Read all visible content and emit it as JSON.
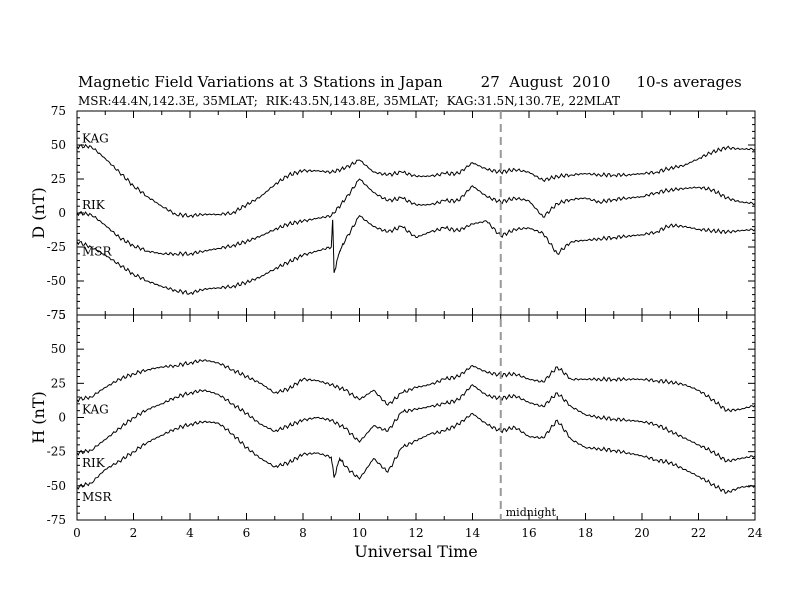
{
  "title": {
    "main": "Magnetic Field Variations at 3 Stations in Japan",
    "date": "27  August  2010",
    "averaging": "10-s averages"
  },
  "subtitle": {
    "msr": "MSR:44.4N,142.3E, 35MLAT;",
    "rik": "RIK:43.5N,143.8E, 35MLAT;",
    "kag": "KAG:31.5N,130.7E, 22MLAT"
  },
  "colors": {
    "trace": "#000000",
    "midnight_marker": "#999999"
  },
  "chart_data": [
    {
      "type": "line",
      "panel": "top",
      "ylabel": "D (nT)",
      "ylim": [
        -75,
        75
      ],
      "yticks": [
        75,
        50,
        25,
        0,
        -25,
        -50,
        -75
      ],
      "xlim": [
        0,
        24
      ],
      "series": [
        {
          "name": "KAG",
          "x": [
            0,
            0.5,
            1,
            1.5,
            2,
            2.5,
            3,
            3.5,
            4,
            4.5,
            5,
            5.5,
            6,
            6.5,
            7,
            7.5,
            8,
            8.5,
            9,
            9.5,
            10,
            10.5,
            11,
            11.5,
            12,
            12.5,
            13,
            13.5,
            14,
            14.5,
            15,
            15.5,
            16,
            16.5,
            17,
            17.5,
            18,
            18.5,
            19,
            19.5,
            20,
            20.5,
            21,
            21.5,
            22,
            22.5,
            23,
            23.5,
            24
          ],
          "values": [
            49,
            49,
            40,
            30,
            20,
            12,
            5,
            -1,
            -2,
            -1,
            -1,
            0,
            6,
            12,
            21,
            28,
            31,
            31,
            30,
            33,
            39,
            30,
            28,
            30,
            27,
            27,
            29,
            29,
            37,
            32,
            30,
            32,
            30,
            24,
            27,
            28,
            29,
            28,
            28,
            28,
            29,
            30,
            33,
            35,
            40,
            45,
            48,
            47,
            47
          ]
        },
        {
          "name": "RIK",
          "x": [
            0,
            0.5,
            1,
            1.5,
            2,
            2.5,
            3,
            3.5,
            4,
            4.5,
            5,
            5.5,
            6,
            6.5,
            7,
            7.5,
            8,
            8.5,
            9,
            9.5,
            10,
            10.5,
            11,
            11.5,
            12,
            12.5,
            13,
            13.5,
            14,
            14.5,
            15,
            15.5,
            16,
            16.5,
            17,
            17.5,
            18,
            18.5,
            19,
            19.5,
            20,
            20.5,
            21,
            21.5,
            22,
            22.5,
            23,
            23.5,
            24
          ],
          "values": [
            0,
            -1,
            -9,
            -18,
            -24,
            -28,
            -30,
            -30,
            -30,
            -28,
            -26,
            -24,
            -21,
            -17,
            -12,
            -8,
            -6,
            -4,
            -2,
            10,
            25,
            15,
            9,
            11,
            6,
            6,
            9,
            9,
            20,
            12,
            8,
            11,
            9,
            -3,
            7,
            10,
            11,
            8,
            10,
            11,
            12,
            15,
            17,
            18,
            19,
            17,
            11,
            8,
            7
          ]
        },
        {
          "name": "MSR",
          "x": [
            0,
            0.5,
            1,
            1.5,
            2,
            2.5,
            3,
            3.5,
            4,
            4.5,
            5,
            5.5,
            6,
            6.5,
            7,
            7.5,
            8,
            8.5,
            9,
            9.05,
            9.1,
            9.3,
            9.5,
            10,
            10.5,
            11,
            11.5,
            12,
            12.5,
            13,
            13.5,
            14,
            14.5,
            15,
            15.5,
            16,
            16.5,
            17,
            17.5,
            18,
            18.5,
            19,
            19.5,
            20,
            20.5,
            21,
            21.5,
            22,
            22.5,
            23,
            23.5,
            24
          ],
          "values": [
            -21,
            -25,
            -31,
            -38,
            -45,
            -50,
            -54,
            -57,
            -59,
            -56,
            -55,
            -54,
            -51,
            -47,
            -41,
            -36,
            -31,
            -28,
            -25,
            -5,
            -44,
            -28,
            -20,
            -2,
            -10,
            -14,
            -10,
            -18,
            -14,
            -11,
            -13,
            -8,
            -6,
            -17,
            -12,
            -11,
            -15,
            -30,
            -21,
            -20,
            -19,
            -18,
            -17,
            -16,
            -14,
            -9,
            -10,
            -12,
            -13,
            -14,
            -13,
            -12
          ]
        }
      ]
    },
    {
      "type": "line",
      "panel": "bottom",
      "ylabel": "H (nT)",
      "ylim": [
        -75,
        75
      ],
      "yticks": [
        75,
        50,
        25,
        0,
        -25,
        -50,
        -75
      ],
      "xlim": [
        0,
        24
      ],
      "xticks": [
        0,
        2,
        4,
        6,
        8,
        10,
        12,
        14,
        16,
        18,
        20,
        22,
        24
      ],
      "xlabel": "Universal Time",
      "annotation": {
        "text": "midnight",
        "x": 15
      },
      "series": [
        {
          "name": "KAG",
          "x": [
            0,
            0.5,
            1,
            1.5,
            2,
            2.5,
            3,
            3.5,
            4,
            4.5,
            5,
            5.5,
            6,
            6.5,
            7,
            7.5,
            8,
            8.5,
            9,
            9.5,
            10,
            10.5,
            11,
            11.5,
            12,
            12.5,
            13,
            13.5,
            14,
            14.5,
            15,
            15.5,
            16,
            16.5,
            17,
            17.5,
            18,
            18.5,
            19,
            19.5,
            20,
            20.5,
            21,
            21.5,
            22,
            22.5,
            23,
            23.5,
            24
          ],
          "values": [
            13,
            15,
            22,
            28,
            32,
            35,
            37,
            38,
            40,
            42,
            40,
            35,
            30,
            25,
            18,
            21,
            28,
            27,
            24,
            20,
            13,
            20,
            9,
            18,
            22,
            24,
            28,
            30,
            38,
            33,
            31,
            32,
            28,
            26,
            37,
            28,
            28,
            28,
            28,
            28,
            28,
            27,
            26,
            24,
            20,
            13,
            5,
            6,
            9
          ]
        },
        {
          "name": "RIK",
          "x": [
            0,
            0.5,
            1,
            1.5,
            2,
            2.5,
            3,
            3.5,
            4,
            4.5,
            5,
            5.5,
            6,
            6.5,
            7,
            7.5,
            8,
            8.5,
            9,
            9.5,
            10,
            10.5,
            11,
            11.5,
            12,
            12.5,
            13,
            13.5,
            14,
            14.5,
            15,
            15.5,
            16,
            16.5,
            17,
            17.5,
            18,
            18.5,
            19,
            19.5,
            20,
            20.5,
            21,
            21.5,
            22,
            22.5,
            23,
            23.5,
            24
          ],
          "values": [
            -26,
            -24,
            -16,
            -8,
            0,
            6,
            10,
            15,
            18,
            20,
            17,
            10,
            3,
            -5,
            -10,
            -6,
            -2,
            0,
            -2,
            -8,
            -18,
            -6,
            -10,
            4,
            6,
            8,
            10,
            13,
            24,
            16,
            14,
            16,
            11,
            8,
            18,
            8,
            2,
            0,
            -1,
            -2,
            -3,
            -5,
            -10,
            -15,
            -20,
            -25,
            -32,
            -30,
            -28
          ]
        },
        {
          "name": "MSR",
          "x": [
            0,
            0.5,
            1,
            1.5,
            2,
            2.5,
            3,
            3.5,
            4,
            4.5,
            5,
            5.5,
            6,
            6.5,
            7,
            7.5,
            8,
            8.5,
            9,
            9.1,
            9.3,
            9.5,
            10,
            10.5,
            11,
            11.5,
            12,
            12.5,
            13,
            13.5,
            14,
            14.5,
            15,
            15.5,
            16,
            16.5,
            17,
            17.5,
            18,
            18.5,
            19,
            19.5,
            20,
            20.5,
            21,
            21.5,
            22,
            22.5,
            23,
            23.5,
            24
          ],
          "values": [
            -51,
            -48,
            -38,
            -32,
            -25,
            -18,
            -13,
            -8,
            -5,
            -3,
            -4,
            -12,
            -22,
            -30,
            -36,
            -33,
            -27,
            -26,
            -29,
            -44,
            -30,
            -36,
            -45,
            -30,
            -40,
            -22,
            -17,
            -12,
            -10,
            -5,
            3,
            -5,
            -10,
            -7,
            -14,
            -15,
            -2,
            -16,
            -22,
            -23,
            -24,
            -26,
            -28,
            -31,
            -33,
            -38,
            -43,
            -49,
            -55,
            -51,
            -50
          ]
        }
      ]
    }
  ]
}
